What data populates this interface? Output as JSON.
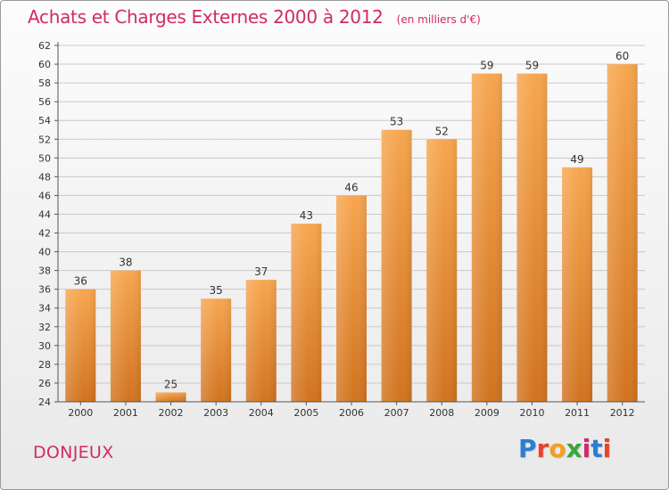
{
  "header": {
    "title": "Achats et Charges Externes 2000 à 2012",
    "subtitle": "(en milliers d'€)"
  },
  "footer": {
    "commune": "DONJEUX",
    "logo": "Proxiti",
    "logo_colors": [
      "#2a7fd1",
      "#e8432a",
      "#f0a020",
      "#3aa63a",
      "#d12a68",
      "#2a7fd1",
      "#e8432a"
    ]
  },
  "colors": {
    "title": "#d12a68",
    "bar_light": "#f7a64f",
    "bar_dark": "#d1731f",
    "grid": "#c9c9c9"
  },
  "chart_data": {
    "type": "bar",
    "categories": [
      "2000",
      "2001",
      "2002",
      "2003",
      "2004",
      "2005",
      "2006",
      "2007",
      "2008",
      "2009",
      "2010",
      "2011",
      "2012"
    ],
    "values": [
      36,
      38,
      25,
      35,
      37,
      43,
      46,
      53,
      52,
      59,
      59,
      49,
      60
    ],
    "ylim": [
      24,
      62
    ],
    "yticks": [
      24,
      26,
      28,
      30,
      32,
      34,
      36,
      38,
      40,
      42,
      44,
      46,
      48,
      50,
      52,
      54,
      56,
      58,
      60,
      62
    ],
    "grid": true,
    "data_labels": true
  }
}
